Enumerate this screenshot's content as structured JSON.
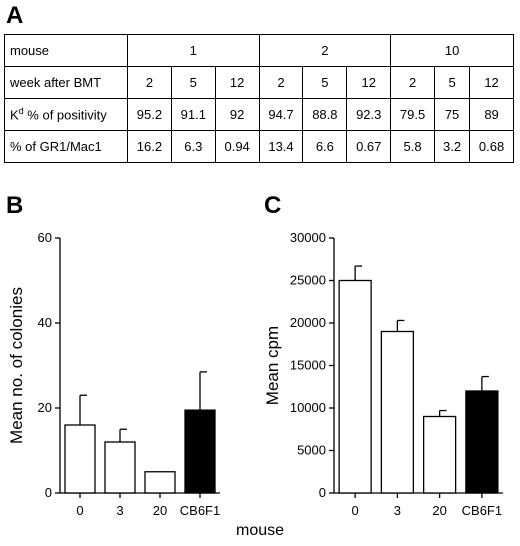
{
  "panels": {
    "a": "A",
    "b": "B",
    "c": "C"
  },
  "table": {
    "header_label": "mouse",
    "mice": [
      "1",
      "2",
      "10"
    ],
    "week_label": "week after BMT",
    "weeks": [
      "2",
      "5",
      "12",
      "2",
      "5",
      "12",
      "2",
      "5",
      "12"
    ],
    "rows": [
      {
        "label_prefix": "K",
        "label_sup": "d",
        "label_suffix": " % of positivity",
        "values": [
          "95.2",
          "91.1",
          "92",
          "94.7",
          "88.8",
          "92.3",
          "79.5",
          "75",
          "89"
        ]
      },
      {
        "label_prefix": "% of GR1/Mac1",
        "label_sup": "",
        "label_suffix": "",
        "values": [
          "16.2",
          "6.3",
          "0.94",
          "13.4",
          "6.6",
          "0.67",
          "5.8",
          "3.2",
          "0.68"
        ]
      }
    ]
  },
  "shared_xlabel": "mouse",
  "chart_data": [
    {
      "panel": "B",
      "type": "bar",
      "categories": [
        "0",
        "3",
        "20",
        "CB6F1"
      ],
      "values": [
        16,
        12,
        5,
        19.5
      ],
      "errors": [
        7,
        3,
        0,
        9
      ],
      "bar_colors": [
        "#ffffff",
        "#ffffff",
        "#ffffff",
        "#000000"
      ],
      "ylabel": "Mean no. of colonies",
      "ylim": [
        0,
        60
      ],
      "yticks": [
        0,
        20,
        40,
        60
      ]
    },
    {
      "panel": "C",
      "type": "bar",
      "categories": [
        "0",
        "3",
        "20",
        "CB6F1"
      ],
      "values": [
        25000,
        19000,
        9000,
        12000
      ],
      "errors": [
        1700,
        1300,
        700,
        1700
      ],
      "bar_colors": [
        "#ffffff",
        "#ffffff",
        "#ffffff",
        "#000000"
      ],
      "ylabel": "Mean cpm",
      "ylim": [
        0,
        30000
      ],
      "yticks": [
        0,
        5000,
        10000,
        15000,
        20000,
        25000,
        30000
      ]
    }
  ]
}
